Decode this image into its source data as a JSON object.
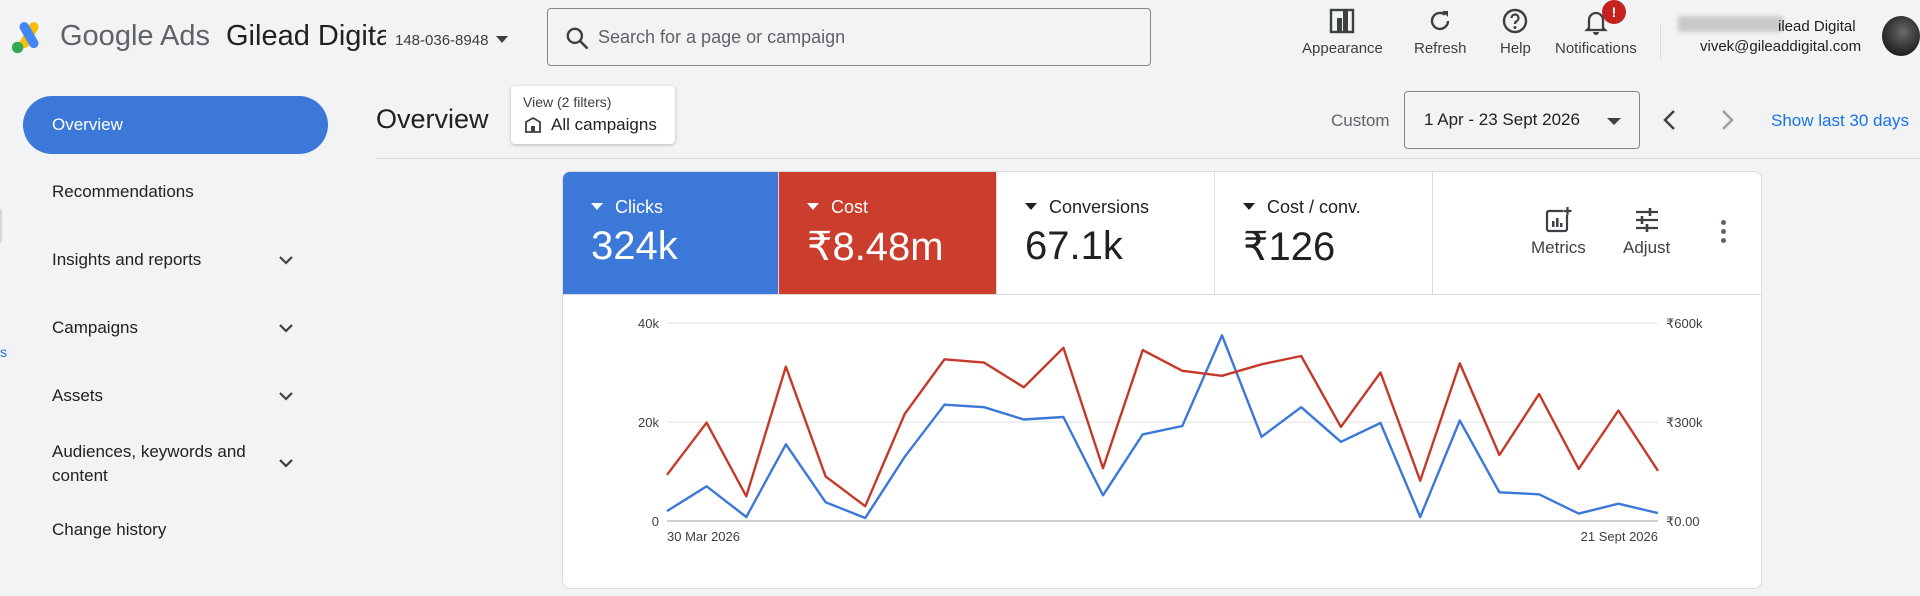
{
  "header": {
    "brand_google": "Google",
    "brand_ads": "Ads",
    "account_name": "Gilead Digital",
    "account_id": "148-036-8948",
    "search_placeholder": "Search for a page or campaign",
    "tools": [
      {
        "label": "Appearance",
        "icon": "appearance-icon"
      },
      {
        "label": "Refresh",
        "icon": "refresh-icon"
      },
      {
        "label": "Help",
        "icon": "help-icon"
      },
      {
        "label": "Notifications",
        "icon": "bell-icon"
      }
    ],
    "notification_badge": "!",
    "user_org": "ilead Digital",
    "user_email": "vivek@gileaddigital.com"
  },
  "sidebar": {
    "items": [
      {
        "label": "Overview",
        "active": true
      },
      {
        "label": "Recommendations"
      },
      {
        "label": "Insights and reports",
        "expandable": true
      },
      {
        "label": "Campaigns",
        "expandable": true
      },
      {
        "label": "Assets",
        "expandable": true
      },
      {
        "label": "Audiences, keywords and",
        "label2": "content",
        "expandable": true
      },
      {
        "label": "Change history"
      }
    ],
    "edge_fragment": "s"
  },
  "main": {
    "title": "Overview",
    "view_filter_label": "View (2 filters)",
    "view_filter_value": "All campaigns",
    "date_mode": "Custom",
    "date_range": "1 Apr - 23 Sept 2026",
    "show_last": "Show last 30 days"
  },
  "metrics": {
    "tiles": [
      {
        "label": "Clicks",
        "value": "324k",
        "color": "#3c78d8"
      },
      {
        "label": "Cost",
        "value": "₹8.48m",
        "color": "#cb3e2d"
      },
      {
        "label": "Conversions",
        "value": "67.1k"
      },
      {
        "label": "Cost / conv.",
        "value": "₹126"
      }
    ],
    "actions": [
      {
        "label": "Metrics",
        "icon": "metrics-icon"
      },
      {
        "label": "Adjust",
        "icon": "adjust-icon"
      }
    ]
  },
  "chart_data": {
    "type": "line",
    "x_start_label": "30 Mar 2026",
    "x_end_label": "21 Sept 2026",
    "y_left_ticks": [
      "0",
      "20k",
      "40k"
    ],
    "y_left_range": [
      0,
      40000
    ],
    "y_right_ticks": [
      "₹0.00",
      "₹300k",
      "₹600k"
    ],
    "y_right_range": [
      0,
      600000
    ],
    "grid": true,
    "series": [
      {
        "name": "Clicks",
        "axis": "left",
        "color": "#3c78d8",
        "values": [
          2000,
          7000,
          800,
          15500,
          3800,
          600,
          13000,
          23500,
          23000,
          20500,
          21000,
          5200,
          17500,
          19200,
          37500,
          17000,
          23000,
          16000,
          19800,
          800,
          20300,
          5800,
          5400,
          1500,
          3500,
          1600
        ]
      },
      {
        "name": "Cost",
        "axis": "right",
        "color": "#c5392a",
        "values": [
          140000,
          298000,
          75000,
          468000,
          135000,
          45000,
          325000,
          490000,
          480000,
          405000,
          525000,
          160000,
          518000,
          455000,
          440000,
          475000,
          500000,
          285000,
          450000,
          122000,
          478000,
          200000,
          385000,
          158000,
          335000,
          152000
        ]
      }
    ]
  }
}
